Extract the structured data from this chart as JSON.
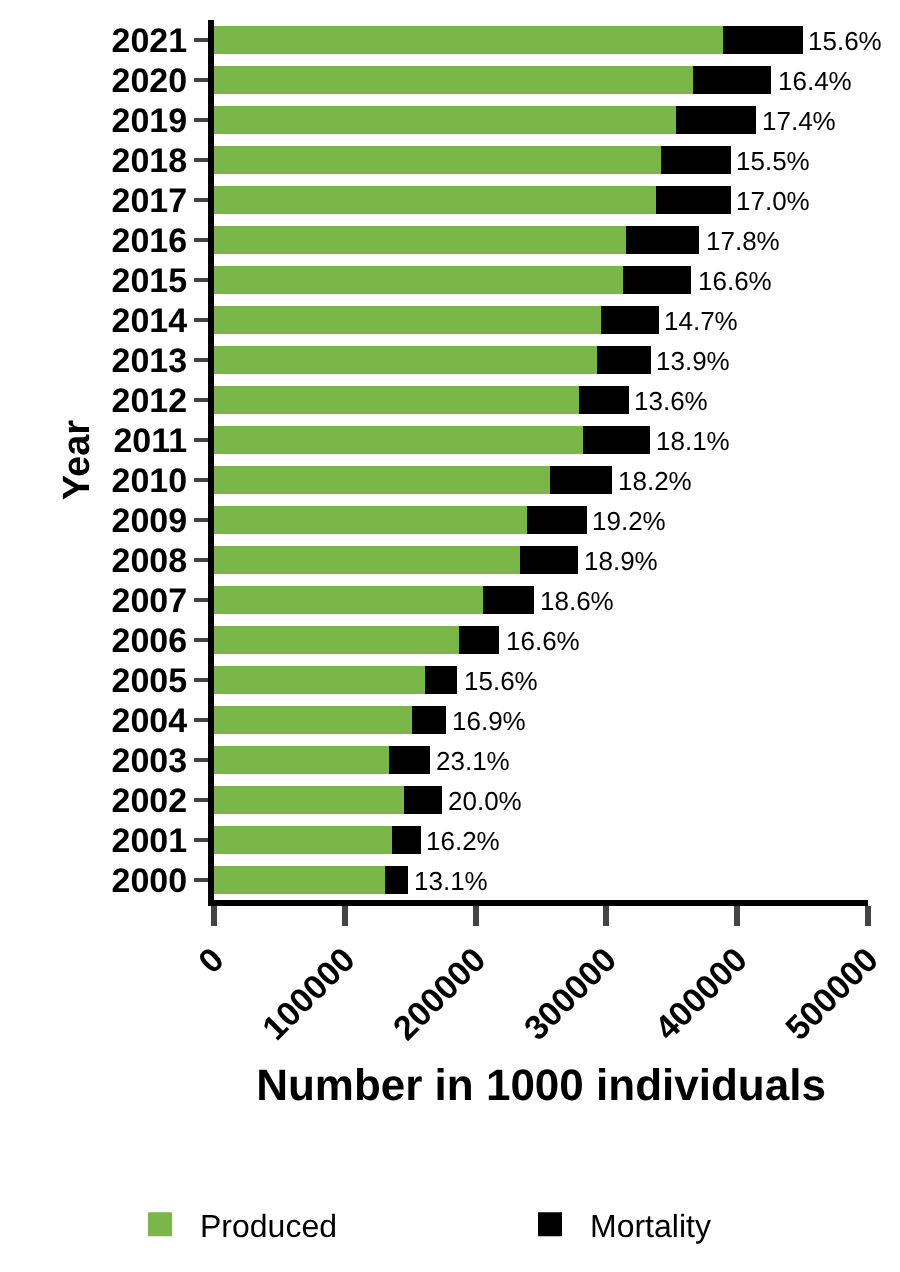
{
  "chart_data": {
    "type": "bar",
    "orientation": "horizontal",
    "stacked": true,
    "xlabel": "Number in 1000 individuals",
    "ylabel": "Year",
    "categories": [
      "2021",
      "2020",
      "2019",
      "2018",
      "2017",
      "2016",
      "2015",
      "2014",
      "2013",
      "2012",
      "2011",
      "2010",
      "2009",
      "2008",
      "2007",
      "2006",
      "2005",
      "2004",
      "2003",
      "2002",
      "2001",
      "2000"
    ],
    "series": [
      {
        "name": "Produced",
        "color": "#7ab648",
        "values": [
          389000,
          366000,
          353000,
          342000,
          338000,
          315000,
          313000,
          296000,
          293000,
          279000,
          282000,
          257000,
          239000,
          234000,
          206000,
          187000,
          161000,
          151000,
          134000,
          145000,
          136000,
          131000
        ]
      },
      {
        "name": "Mortality",
        "color": "#000000",
        "values": [
          61000,
          60000,
          61000,
          53000,
          57000,
          56000,
          52000,
          44000,
          41000,
          38000,
          51000,
          47000,
          46000,
          44000,
          39000,
          31000,
          25000,
          26000,
          31000,
          29000,
          22000,
          17000
        ]
      }
    ],
    "annotations": [
      "15.6%",
      "16.4%",
      "17.4%",
      "15.5%",
      "17.0%",
      "17.8%",
      "16.6%",
      "14.7%",
      "13.9%",
      "13.6%",
      "18.1%",
      "18.2%",
      "19.2%",
      "18.9%",
      "18.6%",
      "16.6%",
      "15.6%",
      "16.9%",
      "23.1%",
      "20.0%",
      "16.2%",
      "13.1%"
    ],
    "xlim": [
      0,
      500000
    ],
    "xticks": [
      0,
      100000,
      200000,
      300000,
      400000,
      500000
    ],
    "grid": false,
    "legend": "bottom"
  }
}
